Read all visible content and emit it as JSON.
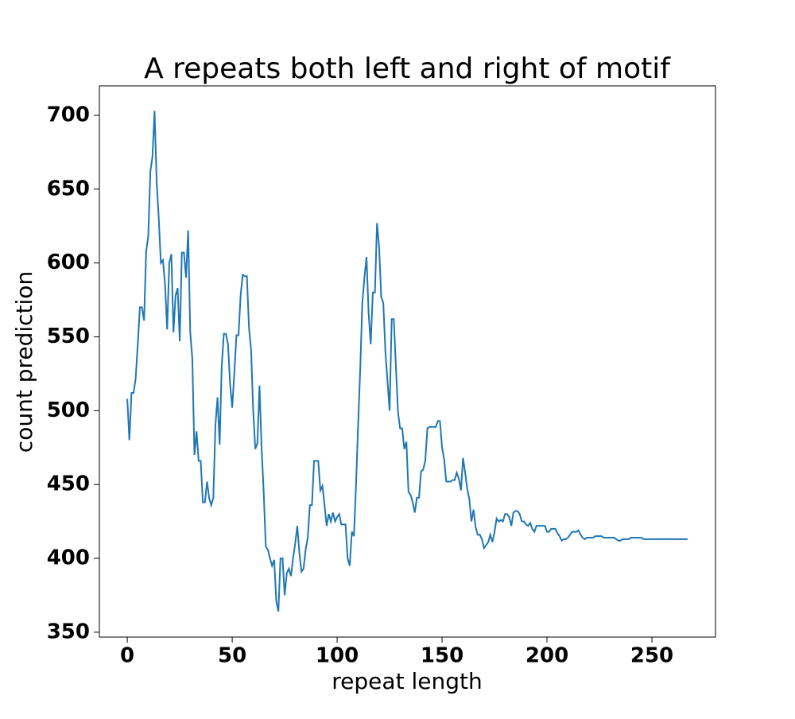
{
  "chart_data": {
    "type": "line",
    "title": "A repeats both left and right of motif",
    "xlabel": "repeat length",
    "ylabel": "count prediction",
    "x": [
      0,
      1,
      2,
      3,
      4,
      5,
      6,
      7,
      8,
      9,
      10,
      11,
      12,
      13,
      14,
      15,
      16,
      17,
      18,
      19,
      20,
      21,
      22,
      23,
      24,
      25,
      26,
      27,
      28,
      29,
      30,
      31,
      32,
      33,
      34,
      35,
      36,
      37,
      38,
      39,
      40,
      41,
      42,
      43,
      44,
      45,
      46,
      47,
      48,
      49,
      50,
      51,
      52,
      53,
      54,
      55,
      56,
      57,
      58,
      59,
      60,
      61,
      62,
      63,
      64,
      65,
      66,
      67,
      68,
      69,
      70,
      71,
      72,
      73,
      74,
      75,
      76,
      77,
      78,
      79,
      80,
      81,
      82,
      83,
      84,
      85,
      86,
      87,
      88,
      89,
      90,
      91,
      92,
      93,
      94,
      95,
      96,
      97,
      98,
      99,
      100,
      101,
      102,
      103,
      104,
      105,
      106,
      107,
      108,
      109,
      110,
      111,
      112,
      113,
      114,
      115,
      116,
      117,
      118,
      119,
      120,
      121,
      122,
      123,
      124,
      125,
      126,
      127,
      128,
      129,
      130,
      131,
      132,
      133,
      134,
      135,
      136,
      137,
      138,
      139,
      140,
      141,
      142,
      143,
      144,
      145,
      146,
      147,
      148,
      149,
      150,
      151,
      152,
      153,
      154,
      155,
      156,
      157,
      158,
      159,
      160,
      161,
      162,
      163,
      164,
      165,
      166,
      167,
      168,
      169,
      170,
      171,
      172,
      173,
      174,
      175,
      176,
      177,
      178,
      179,
      180,
      181,
      182,
      183,
      184,
      185,
      186,
      187,
      188,
      189,
      190,
      191,
      192,
      193,
      194,
      195,
      196,
      197,
      198,
      199,
      200,
      201,
      202,
      203,
      204,
      205,
      206,
      207,
      208,
      209,
      210,
      211,
      212,
      213,
      214,
      215,
      216,
      217,
      218,
      219,
      220,
      221,
      222,
      223,
      224,
      225,
      226,
      227,
      228,
      229,
      230,
      231,
      232,
      233,
      234,
      235,
      236,
      237,
      238,
      239,
      240,
      241,
      242,
      243,
      244,
      245,
      246,
      247,
      248,
      249,
      250,
      251,
      252,
      253,
      254,
      255,
      256,
      257,
      258,
      259,
      260,
      261,
      262,
      263,
      264,
      265,
      266,
      267
    ],
    "series": [
      {
        "color": "#1f77b4",
        "values": [
          508,
          480,
          512,
          512,
          522,
          545,
          570,
          570,
          561,
          608,
          618,
          662,
          672,
          703,
          655,
          630,
          600,
          602,
          585,
          555,
          600,
          606,
          553,
          578,
          583,
          547,
          607,
          607,
          590,
          622,
          553,
          535,
          470,
          486,
          466,
          466,
          438,
          438,
          452,
          441,
          436,
          441,
          490,
          509,
          477,
          530,
          552,
          552,
          545,
          518,
          502,
          525,
          551,
          551,
          578,
          592,
          591,
          591,
          556,
          541,
          500,
          474,
          478,
          517,
          475,
          445,
          408,
          406,
          400,
          395,
          399,
          371,
          364,
          400,
          400,
          375,
          390,
          393,
          388,
          400,
          410,
          422,
          404,
          391,
          393,
          406,
          414,
          436,
          436,
          466,
          466,
          466,
          446,
          449,
          436,
          422,
          430,
          425,
          431,
          425,
          428,
          430,
          423,
          423,
          423,
          400,
          395,
          418,
          415,
          450,
          490,
          528,
          573,
          590,
          604,
          566,
          545,
          580,
          580,
          627,
          611,
          577,
          573,
          540,
          520,
          500,
          562,
          562,
          530,
          499,
          488,
          488,
          474,
          479,
          445,
          443,
          438,
          431,
          441,
          441,
          459,
          460,
          466,
          488,
          489,
          489,
          489,
          489,
          493,
          493,
          475,
          467,
          452,
          452,
          452,
          453,
          453,
          458,
          454,
          446,
          468,
          458,
          447,
          440,
          425,
          433,
          421,
          416,
          416,
          413,
          407,
          409,
          411,
          416,
          411,
          418,
          427,
          425,
          426,
          425,
          430,
          430,
          428,
          422,
          431,
          432,
          432,
          430,
          425,
          425,
          423,
          422,
          424,
          420,
          418,
          422,
          422,
          422,
          422,
          422,
          418,
          418,
          420,
          420,
          420,
          417,
          415,
          412,
          413,
          413,
          414,
          416,
          418,
          418,
          418,
          419,
          416,
          414,
          413,
          414,
          414,
          414,
          414,
          415,
          415,
          415,
          415,
          414,
          414,
          414,
          414,
          414,
          414,
          413,
          412,
          412,
          413,
          413,
          413,
          413,
          414,
          414,
          414,
          414,
          414,
          414,
          413,
          413,
          413,
          413,
          413,
          413,
          413,
          413,
          413,
          413,
          413,
          413,
          413,
          413,
          413,
          413,
          413,
          413,
          413,
          413,
          413,
          413
        ]
      }
    ],
    "xlim": [
      -13.3,
      280.3
    ],
    "ylim": [
      346.7,
      719.9
    ],
    "xticks": [
      0,
      50,
      100,
      150,
      200,
      250
    ],
    "yticks": [
      350,
      400,
      450,
      500,
      550,
      600,
      650,
      700
    ]
  }
}
